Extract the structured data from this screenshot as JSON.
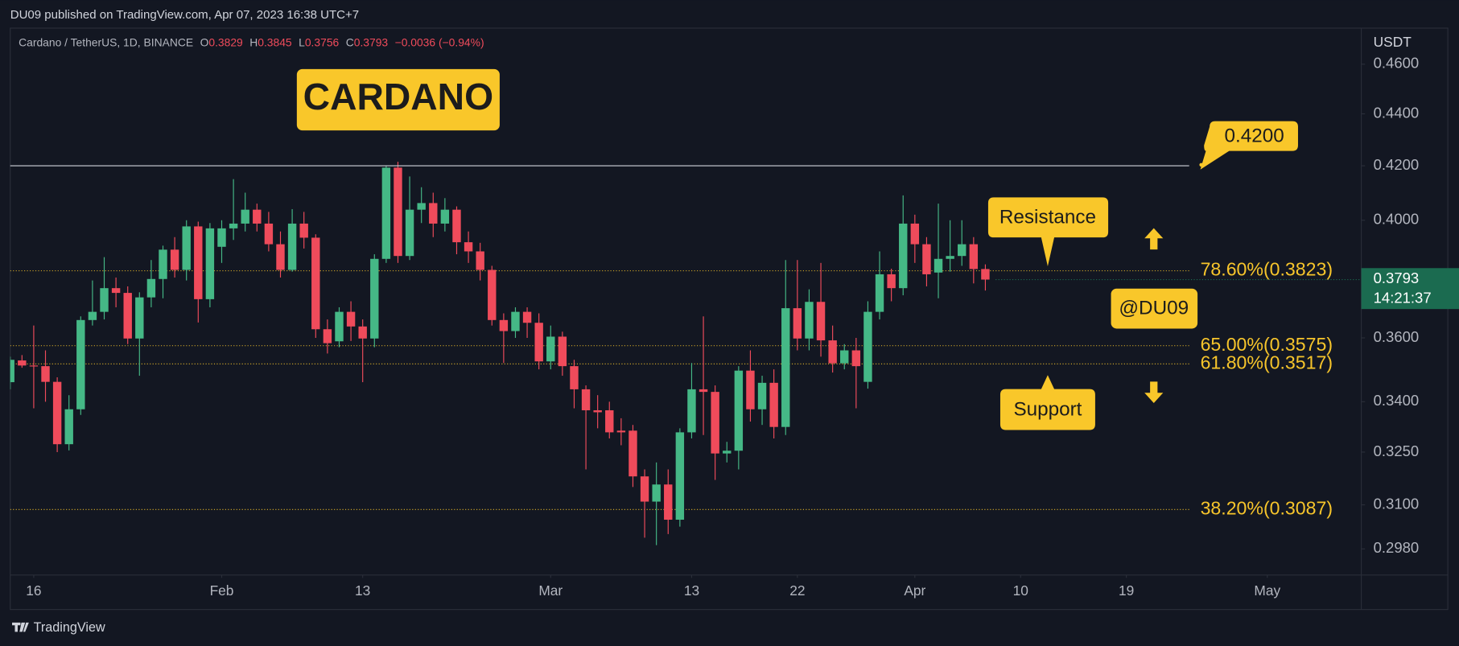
{
  "header": "DU09 published on TradingView.com, Apr 07, 2023 16:38 UTC+7",
  "footer": "TradingView",
  "chart_data": {
    "type": "candlestick",
    "legend": {
      "symbol": "Cardano / TetherUS, 1D, BINANCE",
      "items": [
        {
          "key": "O",
          "value": "0.3829"
        },
        {
          "key": "H",
          "value": "0.3845"
        },
        {
          "key": "L",
          "value": "0.3756"
        },
        {
          "key": "C",
          "value": "0.3793"
        }
      ],
      "change": "−0.0036 (−0.94%)"
    },
    "y_unit": "USDT",
    "x": [
      "2023-01-14",
      "2023-01-15",
      "2023-01-16",
      "2023-01-17",
      "2023-01-18",
      "2023-01-19",
      "2023-01-20",
      "2023-01-21",
      "2023-01-22",
      "2023-01-23",
      "2023-01-24",
      "2023-01-25",
      "2023-01-26",
      "2023-01-27",
      "2023-01-28",
      "2023-01-29",
      "2023-01-30",
      "2023-01-31",
      "2023-02-01",
      "2023-02-02",
      "2023-02-03",
      "2023-02-04",
      "2023-02-05",
      "2023-02-06",
      "2023-02-07",
      "2023-02-08",
      "2023-02-09",
      "2023-02-10",
      "2023-02-11",
      "2023-02-12",
      "2023-02-13",
      "2023-02-14",
      "2023-02-15",
      "2023-02-16",
      "2023-02-17",
      "2023-02-18",
      "2023-02-19",
      "2023-02-20",
      "2023-02-21",
      "2023-02-22",
      "2023-02-23",
      "2023-02-24",
      "2023-02-25",
      "2023-02-26",
      "2023-02-27",
      "2023-02-28",
      "2023-03-01",
      "2023-03-02",
      "2023-03-03",
      "2023-03-04",
      "2023-03-05",
      "2023-03-06",
      "2023-03-07",
      "2023-03-08",
      "2023-03-09",
      "2023-03-10",
      "2023-03-11",
      "2023-03-12",
      "2023-03-13",
      "2023-03-14",
      "2023-03-15",
      "2023-03-16",
      "2023-03-17",
      "2023-03-18",
      "2023-03-19",
      "2023-03-20",
      "2023-03-21",
      "2023-03-22",
      "2023-03-23",
      "2023-03-24",
      "2023-03-25",
      "2023-03-26",
      "2023-03-27",
      "2023-03-28",
      "2023-03-29",
      "2023-03-30",
      "2023-03-31",
      "2023-04-01",
      "2023-04-02",
      "2023-04-03",
      "2023-04-04",
      "2023-04-05",
      "2023-04-06",
      "2023-04-07"
    ],
    "open": [
      0.346,
      0.3528,
      0.3512,
      0.351,
      0.3461,
      0.3273,
      0.3377,
      0.3658,
      0.3685,
      0.3764,
      0.3748,
      0.3598,
      0.3733,
      0.3795,
      0.3896,
      0.3826,
      0.3978,
      0.3727,
      0.3906,
      0.3971,
      0.3988,
      0.4038,
      0.3988,
      0.3915,
      0.3826,
      0.3988,
      0.3938,
      0.3628,
      0.3589,
      0.3685,
      0.3637,
      0.3598,
      0.3864,
      0.4193,
      0.3874,
      0.4038,
      0.4062,
      0.3988,
      0.4038,
      0.3922,
      0.389,
      0.3826,
      0.3658,
      0.3622,
      0.3685,
      0.3649,
      0.3525,
      0.3604,
      0.351,
      0.3438,
      0.3374,
      0.3374,
      0.3313,
      0.3313,
      0.318,
      0.3109,
      0.3157,
      0.3059,
      0.3308,
      0.3438,
      0.343,
      0.3246,
      0.3254,
      0.3496,
      0.3377,
      0.3458,
      0.3324,
      0.3697,
      0.3598,
      0.3718,
      0.3592,
      0.3519,
      0.356,
      0.3461,
      0.3685,
      0.3811,
      0.3764,
      0.3988,
      0.3915,
      0.3817,
      0.3864,
      0.3874,
      0.3915,
      0.3829
    ],
    "high": [
      0.354,
      0.3545,
      0.364,
      0.356,
      0.3475,
      0.342,
      0.367,
      0.379,
      0.387,
      0.38,
      0.377,
      0.375,
      0.386,
      0.391,
      0.394,
      0.4,
      0.3995,
      0.399,
      0.4,
      0.415,
      0.41,
      0.406,
      0.403,
      0.396,
      0.404,
      0.403,
      0.395,
      0.366,
      0.37,
      0.372,
      0.366,
      0.388,
      0.42,
      0.4215,
      0.416,
      0.412,
      0.41,
      0.408,
      0.405,
      0.396,
      0.392,
      0.384,
      0.368,
      0.37,
      0.37,
      0.368,
      0.364,
      0.362,
      0.353,
      0.345,
      0.342,
      0.34,
      0.335,
      0.333,
      0.32,
      0.322,
      0.32,
      0.332,
      0.352,
      0.367,
      0.345,
      0.328,
      0.351,
      0.356,
      0.348,
      0.35,
      0.386,
      0.386,
      0.376,
      0.385,
      0.364,
      0.358,
      0.36,
      0.372,
      0.389,
      0.383,
      0.409,
      0.402,
      0.394,
      0.406,
      0.4,
      0.4,
      0.394,
      0.3845
    ],
    "low": [
      0.3438,
      0.3505,
      0.338,
      0.34,
      0.325,
      0.3255,
      0.336,
      0.364,
      0.366,
      0.37,
      0.358,
      0.348,
      0.37,
      0.373,
      0.38,
      0.379,
      0.365,
      0.37,
      0.385,
      0.393,
      0.396,
      0.396,
      0.389,
      0.38,
      0.382,
      0.39,
      0.36,
      0.355,
      0.357,
      0.359,
      0.346,
      0.357,
      0.385,
      0.385,
      0.386,
      0.399,
      0.394,
      0.396,
      0.388,
      0.385,
      0.379,
      0.364,
      0.352,
      0.36,
      0.36,
      0.35,
      0.35,
      0.348,
      0.338,
      0.32,
      0.332,
      0.329,
      0.327,
      0.315,
      0.301,
      0.299,
      0.302,
      0.304,
      0.329,
      0.33,
      0.317,
      0.322,
      0.32,
      0.334,
      0.333,
      0.329,
      0.33,
      0.356,
      0.356,
      0.354,
      0.349,
      0.35,
      0.338,
      0.344,
      0.366,
      0.372,
      0.374,
      0.385,
      0.377,
      0.373,
      0.382,
      0.384,
      0.378,
      0.3756
    ],
    "close": [
      0.353,
      0.3512,
      0.351,
      0.3461,
      0.3273,
      0.3377,
      0.3658,
      0.3685,
      0.3764,
      0.3748,
      0.3598,
      0.3733,
      0.3795,
      0.3896,
      0.3826,
      0.3978,
      0.3727,
      0.3971,
      0.3971,
      0.3988,
      0.4038,
      0.3988,
      0.3915,
      0.3826,
      0.3988,
      0.3938,
      0.3628,
      0.3583,
      0.3685,
      0.3637,
      0.3598,
      0.3864,
      0.4193,
      0.3874,
      0.4038,
      0.4062,
      0.3988,
      0.4038,
      0.3922,
      0.389,
      0.3826,
      0.3658,
      0.3622,
      0.3685,
      0.3649,
      0.3525,
      0.3604,
      0.351,
      0.3438,
      0.3374,
      0.3368,
      0.3308,
      0.3308,
      0.318,
      0.3109,
      0.3157,
      0.3059,
      0.3308,
      0.3438,
      0.343,
      0.3246,
      0.3254,
      0.3496,
      0.3377,
      0.3458,
      0.3324,
      0.3697,
      0.3598,
      0.3718,
      0.3592,
      0.3519,
      0.356,
      0.351,
      0.3685,
      0.3811,
      0.3764,
      0.3988,
      0.3915,
      0.3811,
      0.3864,
      0.3874,
      0.3915,
      0.3829,
      0.3793
    ],
    "up_color": "#45b886",
    "down_color": "#ef4b5b",
    "log_scale": true,
    "grid": false,
    "ylim": [
      0.2911,
      0.4751
    ],
    "yticks": [
      {
        "value": 0.46,
        "label": "0.4600"
      },
      {
        "value": 0.44,
        "label": "0.4400"
      },
      {
        "value": 0.42,
        "label": "0.4200"
      },
      {
        "value": 0.4,
        "label": "0.4000"
      },
      {
        "value": 0.36,
        "label": "0.3600"
      },
      {
        "value": 0.34,
        "label": "0.3400"
      },
      {
        "value": 0.325,
        "label": "0.3250"
      },
      {
        "value": 0.31,
        "label": "0.3100"
      },
      {
        "value": 0.298,
        "label": "0.2980"
      }
    ],
    "xlim": [
      "2023-01-14",
      "2023-05-09"
    ],
    "xticks": [
      {
        "value": "2023-01-16",
        "label": "16"
      },
      {
        "value": "2023-02-01",
        "label": "Feb"
      },
      {
        "value": "2023-02-13",
        "label": "13"
      },
      {
        "value": "2023-03-01",
        "label": "Mar"
      },
      {
        "value": "2023-03-13",
        "label": "13"
      },
      {
        "value": "2023-03-22",
        "label": "22"
      },
      {
        "value": "2023-04-01",
        "label": "Apr"
      },
      {
        "value": "2023-04-10",
        "label": "10"
      },
      {
        "value": "2023-04-19",
        "label": "19"
      },
      {
        "value": "2023-05-01",
        "label": "May"
      }
    ],
    "fib_levels": [
      {
        "value": 0.3823,
        "label": "78.60%(0.3823)"
      },
      {
        "value": 0.3575,
        "label": "65.00%(0.3575)"
      },
      {
        "value": 0.3517,
        "label": "61.80%(0.3517)"
      },
      {
        "value": 0.3087,
        "label": "38.20%(0.3087)"
      }
    ],
    "fib_color": "#f7c52b",
    "resistance_line": {
      "value": 0.42,
      "label": "0.4200"
    },
    "current_price": {
      "value": 0.3793,
      "label": "0.3793"
    },
    "countdown": "14:21:37",
    "annotations": {
      "badge": "CARDANO",
      "resistance": "Resistance",
      "support": "Support",
      "author": "@DU09"
    }
  }
}
